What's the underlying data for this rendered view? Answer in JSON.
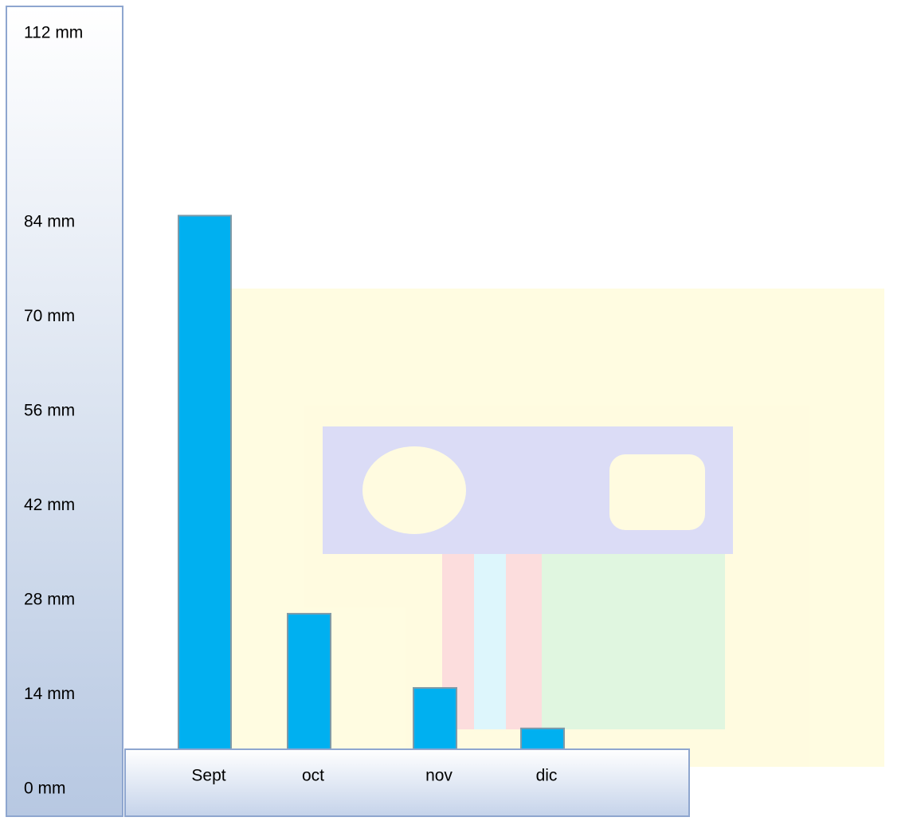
{
  "chart_data": {
    "type": "bar",
    "categories": [
      "Sept",
      "oct",
      "nov",
      "dic"
    ],
    "values": [
      85,
      26,
      15,
      9
    ],
    "color": "#00b0f0",
    "ylim": [
      0,
      112
    ],
    "yticks": [
      {
        "value": 0,
        "label": "0 mm"
      },
      {
        "value": 14,
        "label": "14 mm"
      },
      {
        "value": 28,
        "label": "28 mm"
      },
      {
        "value": 42,
        "label": "42 mm"
      },
      {
        "value": 56,
        "label": "56 mm"
      },
      {
        "value": 70,
        "label": "70 mm"
      },
      {
        "value": 84,
        "label": "84 mm"
      },
      {
        "value": 112,
        "label": "112 mm"
      }
    ],
    "grid": false
  }
}
